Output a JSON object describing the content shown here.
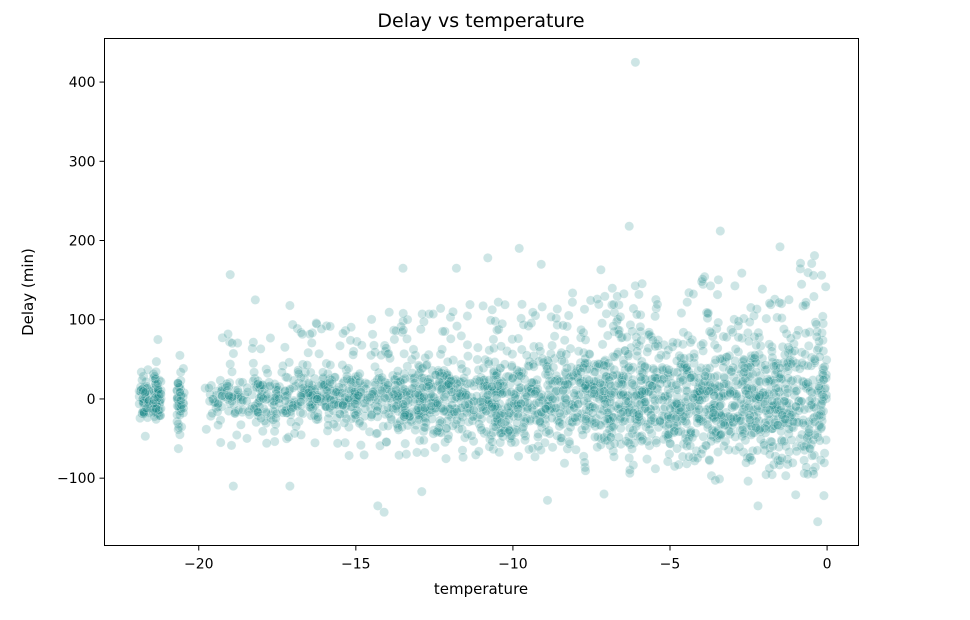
{
  "chart_data": {
    "type": "scatter",
    "title": "Delay vs temperature",
    "xlabel": "temperature",
    "ylabel": "Delay (min)",
    "xlim": [
      -23,
      1
    ],
    "ylim": [
      -185,
      455
    ],
    "x_ticks": [
      -20,
      -15,
      -10,
      -5,
      0
    ],
    "x_tick_labels": [
      "−20",
      "−15",
      "−10",
      "−5",
      "0"
    ],
    "y_ticks": [
      -100,
      0,
      100,
      200,
      300,
      400
    ],
    "y_tick_labels": [
      "−100",
      "0",
      "100",
      "200",
      "300",
      "400"
    ],
    "grid": false,
    "legend": "none",
    "marker_color": "#1a8a8a",
    "marker_alpha": 0.22,
    "x_range": [
      -21.9,
      0
    ],
    "y_range": [
      -155,
      425
    ],
    "outliers": [
      {
        "x": -6.1,
        "y": 425
      },
      {
        "x": -6.3,
        "y": 218
      },
      {
        "x": -3.4,
        "y": 212
      },
      {
        "x": -9.8,
        "y": 190
      },
      {
        "x": -1.5,
        "y": 192
      },
      {
        "x": -0.4,
        "y": 181
      },
      {
        "x": -9.1,
        "y": 170
      },
      {
        "x": -13.5,
        "y": 165
      },
      {
        "x": -19.0,
        "y": 157
      },
      {
        "x": -11.8,
        "y": 165
      },
      {
        "x": -7.2,
        "y": 163
      },
      {
        "x": -10.8,
        "y": 178
      },
      {
        "x": -18.2,
        "y": 125
      },
      {
        "x": -17.1,
        "y": 118
      },
      {
        "x": -14.3,
        "y": -135
      },
      {
        "x": -14.1,
        "y": -143
      },
      {
        "x": -18.9,
        "y": -110
      },
      {
        "x": -0.3,
        "y": -155
      },
      {
        "x": -2.2,
        "y": -135
      },
      {
        "x": -0.1,
        "y": -122
      },
      {
        "x": -1.0,
        "y": -121
      },
      {
        "x": -8.9,
        "y": -128
      },
      {
        "x": -12.9,
        "y": -117
      },
      {
        "x": -7.1,
        "y": -120
      },
      {
        "x": -17.1,
        "y": -110
      },
      {
        "x": -21.7,
        "y": -47
      },
      {
        "x": -21.3,
        "y": 75
      },
      {
        "x": -20.6,
        "y": 55
      },
      {
        "x": -20.6,
        "y": -45
      }
    ]
  }
}
